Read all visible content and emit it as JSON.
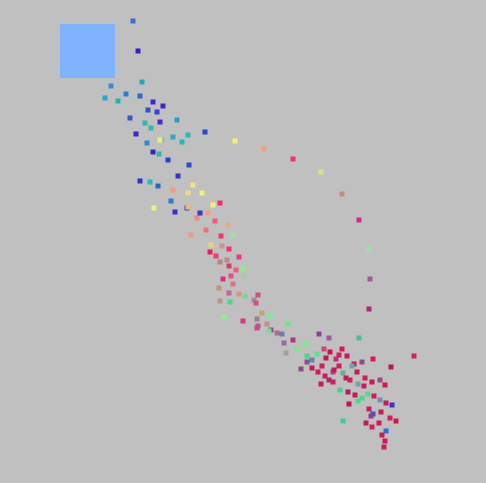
{
  "scene": {
    "background": "#c0c0c0",
    "marker": {
      "color": "#80b3ff"
    },
    "points": [
      [
        133,
        21,
        "#3a6bd6"
      ],
      [
        138,
        51,
        "#3422c4"
      ],
      [
        142,
        82,
        "#2aa3b8"
      ],
      [
        111,
        86,
        "#3f8ad6"
      ],
      [
        126,
        94,
        "#2f7fcf"
      ],
      [
        140,
        96,
        "#3168c9"
      ],
      [
        153,
        102,
        "#3a2bd0"
      ],
      [
        163,
        106,
        "#4326c6"
      ],
      [
        118,
        101,
        "#27b0b2"
      ],
      [
        105,
        98,
        "#2ca6c4"
      ],
      [
        148,
        110,
        "#2a52c9"
      ],
      [
        157,
        112,
        "#3444d2"
      ],
      [
        130,
        118,
        "#3555cc"
      ],
      [
        145,
        123,
        "#2fb5b0"
      ],
      [
        160,
        122,
        "#3a30cf"
      ],
      [
        177,
        120,
        "#2d9ec9"
      ],
      [
        136,
        134,
        "#4324c7"
      ],
      [
        151,
        128,
        "#31b9b0"
      ],
      [
        161,
        140,
        "#28c2a8"
      ],
      [
        173,
        137,
        "#2ea7c3"
      ],
      [
        188,
        135,
        "#2bbab3"
      ],
      [
        205,
        132,
        "#2c44d0"
      ],
      [
        147,
        143,
        "#2f8ad1"
      ],
      [
        159,
        154,
        "#2db7b3"
      ],
      [
        153,
        152,
        "#3a23c3"
      ],
      [
        182,
        142,
        "#2bb6b6"
      ],
      [
        168,
        160,
        "#2d3fd0"
      ],
      [
        189,
        165,
        "#2c4acd"
      ],
      [
        178,
        176,
        "#3e2dc9"
      ],
      [
        150,
        182,
        "#2bb9b5"
      ],
      [
        140,
        181,
        "#2f33c4"
      ],
      [
        158,
        186,
        "#2a65cc"
      ],
      [
        171,
        201,
        "#2b7cd0"
      ],
      [
        175,
        212,
        "#3c2cc8"
      ],
      [
        187,
        208,
        "#2d4ed2"
      ],
      [
        200,
        213,
        "#4434c6"
      ],
      [
        235,
        141,
        "#f5f07a"
      ],
      [
        160,
        140,
        "#f2ec80"
      ],
      [
        193,
        185,
        "#f4e47f"
      ],
      [
        202,
        193,
        "#f6f07c"
      ],
      [
        154,
        208,
        "#f1ef83"
      ],
      [
        188,
        193,
        "#f3d880"
      ],
      [
        213,
        205,
        "#f2ee88"
      ],
      [
        173,
        190,
        "#f19a7e"
      ],
      [
        188,
        207,
        "#f0b67c"
      ],
      [
        208,
        213,
        "#f2a27a"
      ],
      [
        220,
        203,
        "#ef2f62"
      ],
      [
        197,
        218,
        "#eb8c78"
      ],
      [
        215,
        221,
        "#f0587e"
      ],
      [
        228,
        225,
        "#eea877"
      ],
      [
        206,
        230,
        "#f06f79"
      ],
      [
        221,
        236,
        "#e83c6c"
      ],
      [
        233,
        235,
        "#99e69a"
      ],
      [
        191,
        235,
        "#f29a7c"
      ],
      [
        211,
        245,
        "#e7d57f"
      ],
      [
        222,
        246,
        "#ca9383"
      ],
      [
        229,
        249,
        "#ef2f76"
      ],
      [
        210,
        252,
        "#e41e63"
      ],
      [
        216,
        256,
        "#ee3a75"
      ],
      [
        239,
        257,
        "#e53d78"
      ],
      [
        227,
        260,
        "#c3887e"
      ],
      [
        220,
        262,
        "#af8a80"
      ],
      [
        229,
        266,
        "#d43a6d"
      ],
      [
        236,
        270,
        "#ef5b84"
      ],
      [
        243,
        269,
        "#94ec88"
      ],
      [
        231,
        276,
        "#e94e84"
      ],
      [
        244,
        276,
        "#a8cc9a"
      ],
      [
        223,
        279,
        "#e12f78"
      ],
      [
        233,
        284,
        "#d97382"
      ],
      [
        219,
        288,
        "#c0937b"
      ],
      [
        229,
        293,
        "#c36592"
      ],
      [
        230,
        302,
        "#55d189"
      ],
      [
        220,
        301,
        "#b19a83"
      ],
      [
        245,
        296,
        "#7fd291"
      ],
      [
        254,
        300,
        "#9a8fa1"
      ],
      [
        239,
        294,
        "#cc9a7f"
      ],
      [
        258,
        295,
        "#c6517e"
      ],
      [
        256,
        303,
        "#d44f7f"
      ],
      [
        224,
        317,
        "#92ec8b"
      ],
      [
        243,
        321,
        "#d53880"
      ],
      [
        257,
        319,
        "#94848f"
      ],
      [
        262,
        313,
        "#baa57f"
      ],
      [
        270,
        316,
        "#7dea96"
      ],
      [
        258,
        326,
        "#c15392"
      ],
      [
        271,
        330,
        "#8e4f8c"
      ],
      [
        288,
        324,
        "#6ee487"
      ],
      [
        267,
        324,
        "#b79685"
      ],
      [
        282,
        334,
        "#6b7db0"
      ],
      [
        284,
        343,
        "#8b70a0"
      ],
      [
        293,
        340,
        "#b3357b"
      ],
      [
        298,
        349,
        "#7bea8c"
      ],
      [
        306,
        344,
        "#73ee8f"
      ],
      [
        286,
        353,
        "#ad9a9a"
      ],
      [
        307,
        356,
        "#4bd386"
      ],
      [
        301,
        369,
        "#8a4b8c"
      ],
      [
        319,
        334,
        "#874691"
      ],
      [
        329,
        338,
        "#9b5b9e"
      ],
      [
        324,
        349,
        "#ca4675"
      ],
      [
        317,
        354,
        "#59e392"
      ],
      [
        312,
        360,
        "#6d7fab"
      ],
      [
        322,
        366,
        "#d11f5c"
      ],
      [
        330,
        352,
        "#c2164d"
      ],
      [
        336,
        359,
        "#b5347d"
      ],
      [
        342,
        349,
        "#d4185d"
      ],
      [
        347,
        356,
        "#c61b60"
      ],
      [
        354,
        364,
        "#cd1a5b"
      ],
      [
        359,
        338,
        "#4fbf8d"
      ],
      [
        362,
        362,
        "#8a4f8a"
      ],
      [
        373,
        359,
        "#d61950"
      ],
      [
        391,
        367,
        "#b01850"
      ],
      [
        414,
        356,
        "#d52160"
      ],
      [
        325,
        376,
        "#cf1b58"
      ],
      [
        333,
        372,
        "#9c4d93"
      ],
      [
        339,
        366,
        "#c91d5f"
      ],
      [
        343,
        373,
        "#5db78b"
      ],
      [
        350,
        380,
        "#cc2057"
      ],
      [
        358,
        384,
        "#7da0a2"
      ],
      [
        365,
        378,
        "#cf1d5a"
      ],
      [
        372,
        382,
        "#c41c55"
      ],
      [
        380,
        380,
        "#8d4f8c"
      ],
      [
        385,
        385,
        "#cf1b55"
      ],
      [
        321,
        384,
        "#c8185a"
      ],
      [
        333,
        382,
        "#d11e5d"
      ],
      [
        340,
        390,
        "#4ad08e"
      ],
      [
        348,
        392,
        "#b01e59"
      ],
      [
        355,
        395,
        "#c21a59"
      ],
      [
        362,
        398,
        "#4fd48b"
      ],
      [
        368,
        394,
        "#63d29a"
      ],
      [
        374,
        396,
        "#d21b5f"
      ],
      [
        380,
        400,
        "#6e8fb0"
      ],
      [
        386,
        403,
        "#c11d56"
      ],
      [
        392,
        405,
        "#3f2fc4"
      ],
      [
        358,
        401,
        "#52d48e"
      ],
      [
        349,
        404,
        "#c1164b"
      ],
      [
        369,
        409,
        "#cf1b59"
      ],
      [
        373,
        414,
        "#3b59c3"
      ],
      [
        381,
        412,
        "#c9195a"
      ],
      [
        390,
        418,
        "#d81a5b"
      ],
      [
        396,
        421,
        "#c61a54"
      ],
      [
        371,
        416,
        "#8d3f8e"
      ],
      [
        343,
        421,
        "#3fce90"
      ],
      [
        379,
        423,
        "#cf1b55"
      ],
      [
        386,
        431,
        "#2d6fcf"
      ],
      [
        372,
        427,
        "#d12165"
      ],
      [
        382,
        435,
        "#c51d5b"
      ],
      [
        385,
        441,
        "#c8195a"
      ],
      [
        384,
        447,
        "#cf1b55"
      ],
      [
        366,
        423,
        "#c71a56"
      ],
      [
        264,
        149,
        "#f0a07a"
      ],
      [
        293,
        159,
        "#ef2f73"
      ],
      [
        321,
        172,
        "#cfeb85"
      ],
      [
        342,
        194,
        "#c28b84"
      ],
      [
        359,
        220,
        "#d32c7a"
      ],
      [
        369,
        249,
        "#95e69b"
      ],
      [
        370,
        279,
        "#9d5a95"
      ],
      [
        369,
        309,
        "#b22580"
      ],
      [
        257,
        328,
        "#cf4a82"
      ],
      [
        269,
        331,
        "#7fdb95"
      ],
      [
        277,
        333,
        "#ab6f87"
      ],
      [
        334,
        370,
        "#c51a5a"
      ],
      [
        329,
        380,
        "#a72a63"
      ],
      [
        346,
        378,
        "#c21c55"
      ],
      [
        357,
        372,
        "#c8195a"
      ],
      [
        364,
        386,
        "#c81b5b"
      ],
      [
        352,
        366,
        "#6ba7a6"
      ],
      [
        339,
        355,
        "#cf1f58"
      ],
      [
        326,
        358,
        "#b51d53"
      ],
      [
        318,
        372,
        "#d21c5e"
      ],
      [
        312,
        368,
        "#c3185a"
      ],
      [
        307,
        362,
        "#8a4f8c"
      ]
    ]
  }
}
